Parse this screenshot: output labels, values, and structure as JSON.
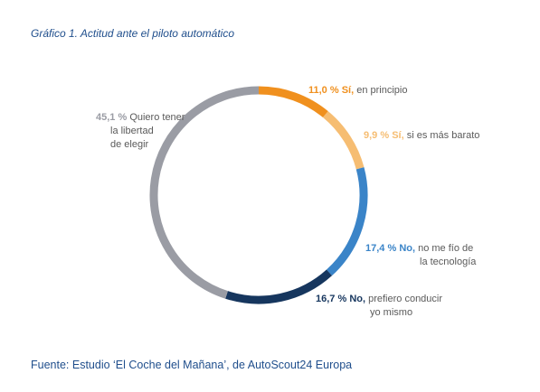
{
  "title": "Gráfico 1. Actitud ante el piloto automático",
  "source": "Fuente: Estudio ‘El Coche del Mañana’, de AutoScout24 Europa",
  "colors": {
    "title": "#1f4e8c",
    "label_text": "#5a5a5a"
  },
  "chart_data": {
    "type": "pie",
    "style": "ring",
    "unit": "%",
    "slices": [
      {
        "value": 11.0,
        "pct_label": "11,0 %",
        "answer": "Sí,",
        "line1_rest": "en principio",
        "line2": "",
        "color": "#f0901e"
      },
      {
        "value": 9.9,
        "pct_label": "9,9 %",
        "answer": "Sí,",
        "line1_rest": "si es más barato",
        "line2": "",
        "color": "#f6bd72"
      },
      {
        "value": 17.4,
        "pct_label": "17,4 %",
        "answer": "No,",
        "line1_rest": "no me fío de",
        "line2": "la tecnología",
        "color": "#3a84c8"
      },
      {
        "value": 16.7,
        "pct_label": "16,7 %",
        "answer": "No,",
        "line1_rest": "prefiero conducir",
        "line2": "yo mismo",
        "color": "#16365e"
      },
      {
        "value": 45.1,
        "pct_label": "45,1 %",
        "answer": "",
        "line1_rest": "Quiero tener",
        "line2": "la libertad",
        "line3": "de elegir",
        "color": "#9a9ca4"
      }
    ]
  }
}
